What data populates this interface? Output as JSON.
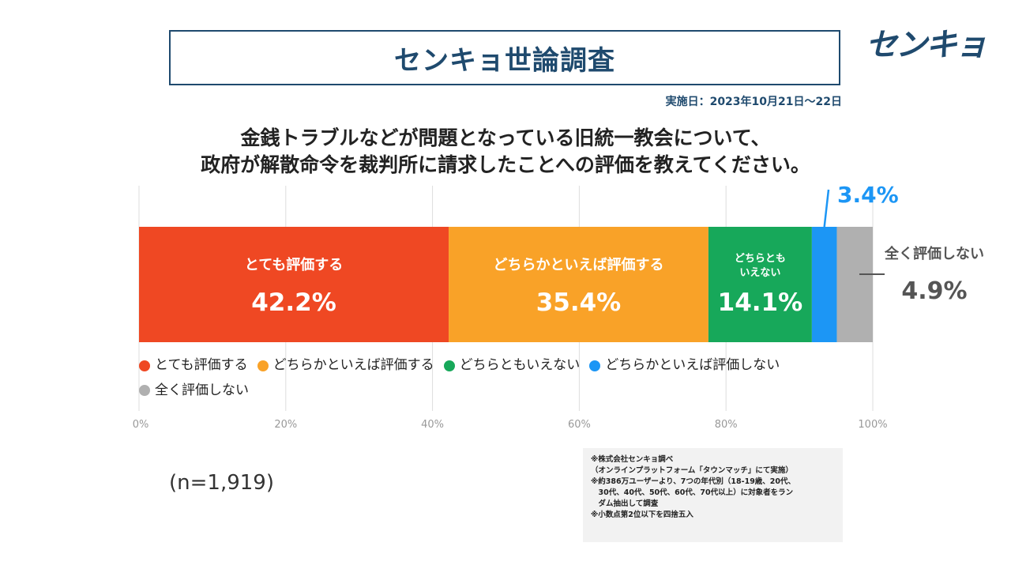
{
  "header": {
    "title": "センキョ世論調査",
    "logo_text": "センキョ",
    "date": "実施日：2023年10月21日～22日"
  },
  "question": {
    "line1": "金銭トラブルなどが問題となっている旧統一教会について、",
    "line2": "政府が解散命令を裁判所に請求したことへの評価を教えてください。"
  },
  "chart_data": {
    "type": "bar",
    "orientation": "horizontal-stacked",
    "categories": [
      "とても評価する",
      "どちらかといえば評価する",
      "どちらともいえない",
      "どちらかといえば評価しない",
      "全く評価しない"
    ],
    "values": [
      42.2,
      35.4,
      14.1,
      3.4,
      4.9
    ],
    "value_labels": [
      "42.2%",
      "35.4%",
      "14.1%",
      "3.4%",
      "4.9%"
    ],
    "segment_labels": [
      "とても評価する",
      "どちらかといえば評価する",
      "どちらとも\nいえない",
      "",
      ""
    ],
    "outside_labels": {
      "bottom_right_name": "全く評価しない"
    },
    "colors": [
      "#ef4823",
      "#f9a228",
      "#17a85a",
      "#1c96f5",
      "#b0b0b0"
    ],
    "xlim": [
      0,
      100
    ],
    "ticks": [
      "0%",
      "20%",
      "40%",
      "60%",
      "80%",
      "100%"
    ],
    "tick_values": [
      0,
      20,
      40,
      60,
      80,
      100
    ],
    "grid": true,
    "legend": "bottom"
  },
  "sample": "(n=1,919)",
  "notes": [
    "※株式会社センキョ調べ",
    "（オンラインプラットフォーム「タウンマッチ」にて実施）",
    "※約386万ユーザーより、7つの年代別（18-19歳、20代、",
    "　30代、40代、50代、60代、70代以上）に対象者をラン",
    "　ダム抽出して調査",
    "※小数点第2位以下を四捨五入"
  ]
}
